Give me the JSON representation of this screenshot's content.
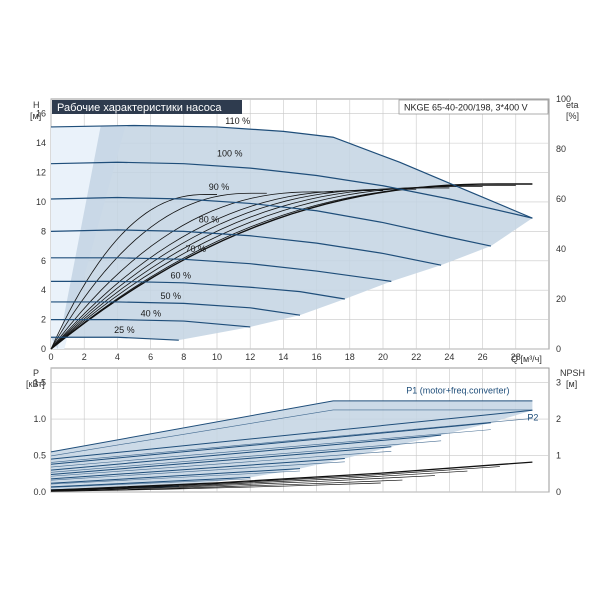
{
  "title": "Рабочие характеристики насоса",
  "model": "NKGE 65-40-200/198, 3*400 V",
  "colors": {
    "curve": "#1f4e7a",
    "area": "#c3d3e3",
    "left_area": "#eaf2fa",
    "efficiency": "#111111",
    "grid": "#c8c8c8",
    "title_bg": "#2e3b4e"
  },
  "chart_data": [
    {
      "type": "line",
      "name": "head",
      "xlabel": "Q [м³/ч]",
      "ylabel_lines": [
        "H",
        "[м]"
      ],
      "y2label_lines": [
        "eta",
        "[%]"
      ],
      "xlim": [
        0,
        30
      ],
      "ylim": [
        0,
        17
      ],
      "y2lim": [
        0,
        100
      ],
      "xticks": [
        0,
        2,
        4,
        6,
        8,
        10,
        12,
        14,
        16,
        18,
        20,
        22,
        24,
        26,
        28
      ],
      "yticks": [
        0,
        2,
        4,
        6,
        8,
        10,
        12,
        14,
        16
      ],
      "y2ticks": [
        0,
        20,
        40,
        60,
        80,
        100
      ],
      "grid": true,
      "series": [
        {
          "label": "110 %",
          "label_at": [
            10.5,
            15.3
          ],
          "x": [
            0,
            5,
            10,
            14,
            17,
            21,
            25,
            29
          ],
          "y": [
            15.1,
            15.2,
            15.1,
            14.8,
            14.4,
            12.7,
            10.8,
            8.9
          ]
        },
        {
          "label": "100 %",
          "label_at": [
            10,
            13.1
          ],
          "x": [
            0,
            4,
            8,
            12,
            16,
            20,
            24,
            29
          ],
          "y": [
            12.6,
            12.7,
            12.6,
            12.3,
            11.8,
            11.1,
            10.2,
            8.9
          ]
        },
        {
          "label": "90 %",
          "label_at": [
            9.5,
            10.8
          ],
          "x": [
            0,
            4,
            8,
            12,
            16,
            20,
            24,
            26.5
          ],
          "y": [
            10.2,
            10.3,
            10.2,
            9.9,
            9.4,
            8.6,
            7.6,
            7.0
          ]
        },
        {
          "label": "80 %",
          "label_at": [
            8.9,
            8.6
          ],
          "x": [
            0,
            4,
            8,
            12,
            16,
            20,
            23.5
          ],
          "y": [
            8.0,
            8.1,
            8.0,
            7.7,
            7.2,
            6.5,
            5.7
          ]
        },
        {
          "label": "70 %",
          "label_at": [
            8.1,
            6.6
          ],
          "x": [
            0,
            4,
            8,
            12,
            16,
            20.5
          ],
          "y": [
            6.2,
            6.2,
            6.1,
            5.8,
            5.3,
            4.6
          ]
        },
        {
          "label": "60 %",
          "label_at": [
            7.2,
            4.8
          ],
          "x": [
            0,
            4,
            8,
            12,
            15,
            17.7
          ],
          "y": [
            4.6,
            4.6,
            4.5,
            4.2,
            3.9,
            3.4
          ]
        },
        {
          "label": "50 %",
          "label_at": [
            6.6,
            3.4
          ],
          "x": [
            0,
            4,
            8,
            12,
            15
          ],
          "y": [
            3.2,
            3.2,
            3.1,
            2.8,
            2.3
          ]
        },
        {
          "label": "40 %",
          "label_at": [
            5.4,
            2.2
          ],
          "x": [
            0,
            4,
            8,
            12
          ],
          "y": [
            2.0,
            2.0,
            1.9,
            1.5
          ]
        },
        {
          "label": "25 %",
          "label_at": [
            3.8,
            1.1
          ],
          "x": [
            0,
            4,
            7.7
          ],
          "y": [
            0.8,
            0.8,
            0.6
          ]
        }
      ],
      "efficiency_series": [
        {
          "scale": 1.0,
          "x_end": 29.0
        },
        {
          "scale": 0.9,
          "x_end": 28.0
        },
        {
          "scale": 0.8,
          "x_end": 26.0
        },
        {
          "scale": 0.7,
          "x_end": 24.0
        },
        {
          "scale": 0.6,
          "x_end": 22.0
        },
        {
          "scale": 0.5,
          "x_end": 20.0
        },
        {
          "scale": 0.4,
          "x_end": 17.0
        },
        {
          "scale": 0.3,
          "x_end": 13.0
        },
        {
          "scale": 0.2,
          "x_end": 10.0
        }
      ]
    },
    {
      "type": "line",
      "name": "power",
      "ylabel_lines": [
        "P",
        "[кВт]"
      ],
      "y2label_lines": [
        "NPSH",
        "[м]"
      ],
      "xlim": [
        0,
        30
      ],
      "ylim": [
        0,
        1.7
      ],
      "y2lim": [
        0,
        3.4
      ],
      "yticks": [
        0,
        0.5,
        1.0,
        1.5
      ],
      "y2ticks": [
        0,
        1,
        2,
        3
      ],
      "grid": true,
      "series": [
        {
          "x": [
            0,
            17,
            29
          ],
          "y": [
            0.55,
            1.25,
            1.25
          ]
        },
        {
          "x": [
            0,
            29
          ],
          "y": [
            0.45,
            1.12
          ]
        },
        {
          "x": [
            0,
            26.5
          ],
          "y": [
            0.38,
            0.95
          ]
        },
        {
          "x": [
            0,
            23.5
          ],
          "y": [
            0.3,
            0.78
          ]
        },
        {
          "x": [
            0,
            20.5
          ],
          "y": [
            0.24,
            0.62
          ]
        },
        {
          "x": [
            0,
            17.7
          ],
          "y": [
            0.18,
            0.46
          ]
        },
        {
          "x": [
            0,
            15
          ],
          "y": [
            0.12,
            0.32
          ]
        },
        {
          "x": [
            0,
            12
          ],
          "y": [
            0.07,
            0.2
          ]
        },
        {
          "x": [
            0,
            7.7
          ],
          "y": [
            0.03,
            0.08
          ]
        }
      ],
      "npsh": {
        "x": [
          0,
          10,
          20,
          29
        ],
        "y": [
          0.05,
          0.25,
          0.52,
          0.82
        ]
      },
      "legend": [
        {
          "label": "P1 (motor+freq.converter)",
          "at": [
            21.4,
            1.35
          ]
        },
        {
          "label": "P2",
          "at": [
            28.7,
            0.98
          ]
        }
      ]
    }
  ]
}
